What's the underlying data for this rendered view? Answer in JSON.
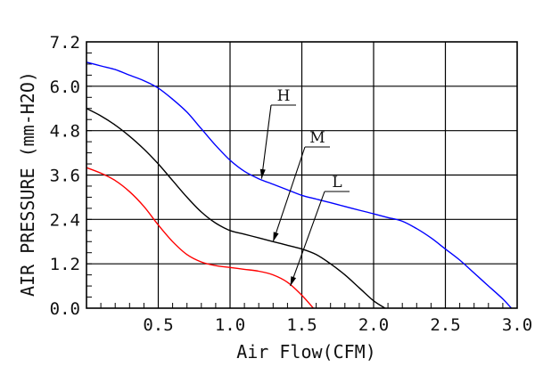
{
  "chart_data": {
    "type": "line",
    "title": "",
    "xlabel": "Air Flow(CFM)",
    "ylabel": "AIR PRESSURE (mm-H2O)",
    "xlim": [
      0,
      3.0
    ],
    "ylim": [
      0,
      7.2
    ],
    "x_ticks": [
      "0.5",
      "1.0",
      "1.5",
      "2.0",
      "2.5",
      "3.0"
    ],
    "y_ticks": [
      "0.0",
      "1.2",
      "2.4",
      "3.6",
      "4.8",
      "6.0",
      "7.2"
    ],
    "grid": true,
    "series": [
      {
        "name": "H",
        "color": "#0000ff",
        "x": [
          0,
          0.1,
          0.2,
          0.3,
          0.4,
          0.5,
          0.6,
          0.7,
          0.8,
          0.9,
          1.0,
          1.1,
          1.2,
          1.3,
          1.4,
          1.5,
          1.6,
          1.7,
          1.8,
          1.9,
          2.0,
          2.1,
          2.2,
          2.3,
          2.4,
          2.5,
          2.6,
          2.7,
          2.8,
          2.9,
          2.96
        ],
        "y": [
          6.65,
          6.55,
          6.45,
          6.3,
          6.15,
          5.95,
          5.65,
          5.3,
          4.85,
          4.4,
          4.0,
          3.7,
          3.5,
          3.35,
          3.2,
          3.05,
          2.95,
          2.85,
          2.75,
          2.65,
          2.55,
          2.45,
          2.35,
          2.15,
          1.9,
          1.6,
          1.3,
          0.95,
          0.6,
          0.25,
          0.0
        ]
      },
      {
        "name": "M",
        "color": "#000000",
        "x": [
          0,
          0.1,
          0.2,
          0.3,
          0.4,
          0.5,
          0.6,
          0.7,
          0.8,
          0.9,
          1.0,
          1.1,
          1.2,
          1.3,
          1.4,
          1.5,
          1.6,
          1.7,
          1.8,
          1.9,
          2.0,
          2.08
        ],
        "y": [
          5.4,
          5.2,
          4.95,
          4.65,
          4.3,
          3.9,
          3.45,
          3.0,
          2.6,
          2.3,
          2.1,
          2.0,
          1.9,
          1.8,
          1.7,
          1.6,
          1.45,
          1.2,
          0.9,
          0.55,
          0.2,
          0.0
        ]
      },
      {
        "name": "L",
        "color": "#ff0000",
        "x": [
          0,
          0.1,
          0.2,
          0.3,
          0.4,
          0.5,
          0.6,
          0.7,
          0.8,
          0.9,
          1.0,
          1.1,
          1.2,
          1.3,
          1.4,
          1.5,
          1.58
        ],
        "y": [
          3.8,
          3.65,
          3.45,
          3.15,
          2.75,
          2.25,
          1.8,
          1.45,
          1.25,
          1.15,
          1.1,
          1.05,
          1.0,
          0.9,
          0.7,
          0.35,
          0.0
        ]
      }
    ],
    "annotations": [
      {
        "text": "H",
        "target_x": 1.22,
        "target_y": 3.5
      },
      {
        "text": "M",
        "target_x": 1.3,
        "target_y": 1.8
      },
      {
        "text": "L",
        "target_x": 1.42,
        "target_y": 0.6
      }
    ]
  }
}
